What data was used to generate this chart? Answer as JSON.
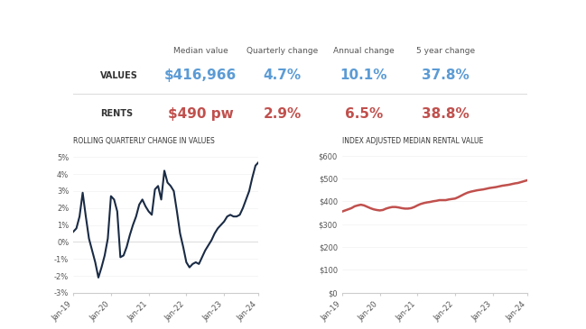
{
  "bg_color": "#f5f5f5",
  "white_bg": "#ffffff",
  "header_bg": "#f5f5f5",
  "blue_color": "#5B9BD5",
  "orange_color": "#C0504D",
  "dark_color": "#1F3864",
  "gray_text": "#666666",
  "dark_navy": "#1a2b45",
  "col_headers": [
    "Median value",
    "Quarterly change",
    "Annual change",
    "5 year change"
  ],
  "row_labels": [
    "VALUES",
    "RENTS"
  ],
  "values_row": [
    "$416,966",
    "4.7%",
    "10.1%",
    "37.8%"
  ],
  "rents_row": [
    "$490 pw",
    "2.9%",
    "6.5%",
    "38.8%"
  ],
  "chart1_title": "ROLLING QUARTERLY CHANGE IN VALUES",
  "chart2_title": "INDEX ADJUSTED MEDIAN RENTAL VALUE",
  "qtly_x": [
    0,
    1,
    2,
    3,
    4,
    5,
    6,
    7,
    8,
    9,
    10,
    11,
    12,
    13,
    14,
    15,
    16,
    17,
    18,
    19,
    20,
    21,
    22,
    23,
    24,
    25,
    26,
    27,
    28,
    29,
    30,
    31,
    32,
    33,
    34,
    35,
    36,
    37,
    38,
    39,
    40,
    41,
    42,
    43,
    44,
    45,
    46,
    47,
    48,
    49,
    50,
    51,
    52,
    53,
    54,
    55,
    56,
    57,
    58,
    59
  ],
  "qtly_y": [
    0.6,
    0.8,
    1.5,
    2.9,
    1.5,
    0.2,
    -0.5,
    -1.2,
    -2.1,
    -1.5,
    -0.8,
    0.2,
    2.7,
    2.5,
    1.8,
    -0.9,
    -0.8,
    -0.3,
    0.4,
    1.0,
    1.5,
    2.2,
    2.5,
    2.1,
    1.8,
    1.6,
    3.1,
    3.3,
    2.5,
    4.2,
    3.5,
    3.3,
    3.0,
    1.8,
    0.5,
    -0.3,
    -1.2,
    -1.5,
    -1.3,
    -1.2,
    -1.3,
    -0.9,
    -0.5,
    -0.2,
    0.1,
    0.5,
    0.8,
    1.0,
    1.2,
    1.5,
    1.6,
    1.5,
    1.5,
    1.6,
    2.0,
    2.5,
    3.0,
    3.8,
    4.5,
    4.7
  ],
  "rental_x": [
    0,
    1,
    2,
    3,
    4,
    5,
    6,
    7,
    8,
    9,
    10,
    11,
    12,
    13,
    14,
    15,
    16,
    17,
    18,
    19,
    20,
    21,
    22,
    23,
    24,
    25,
    26,
    27,
    28,
    29,
    30,
    31,
    32,
    33,
    34,
    35,
    36,
    37,
    38,
    39,
    40,
    41,
    42,
    43,
    44,
    45,
    46,
    47,
    48,
    49,
    50,
    51,
    52,
    53,
    54,
    55,
    56,
    57,
    58,
    59
  ],
  "rental_y": [
    355,
    360,
    365,
    370,
    378,
    382,
    385,
    382,
    376,
    370,
    365,
    362,
    360,
    362,
    368,
    372,
    375,
    375,
    373,
    370,
    368,
    368,
    370,
    375,
    382,
    388,
    392,
    395,
    397,
    400,
    402,
    405,
    405,
    405,
    408,
    410,
    412,
    418,
    425,
    432,
    438,
    442,
    445,
    448,
    450,
    452,
    455,
    458,
    460,
    462,
    465,
    468,
    470,
    472,
    475,
    478,
    480,
    484,
    488,
    492
  ],
  "qtly_xticks_pos": [
    0,
    12,
    24,
    36,
    48,
    59
  ],
  "qtly_xticks_labels": [
    "Jan-19",
    "Jan-20",
    "Jan-21",
    "Jan-22",
    "Jan-23",
    "Jan-24"
  ],
  "rental_xticks_pos": [
    0,
    12,
    24,
    36,
    48,
    59
  ],
  "rental_xticks_labels": [
    "Jan-19",
    "Jan-20",
    "Jan-21",
    "Jan-22",
    "Jan-23",
    "Jan-24"
  ]
}
